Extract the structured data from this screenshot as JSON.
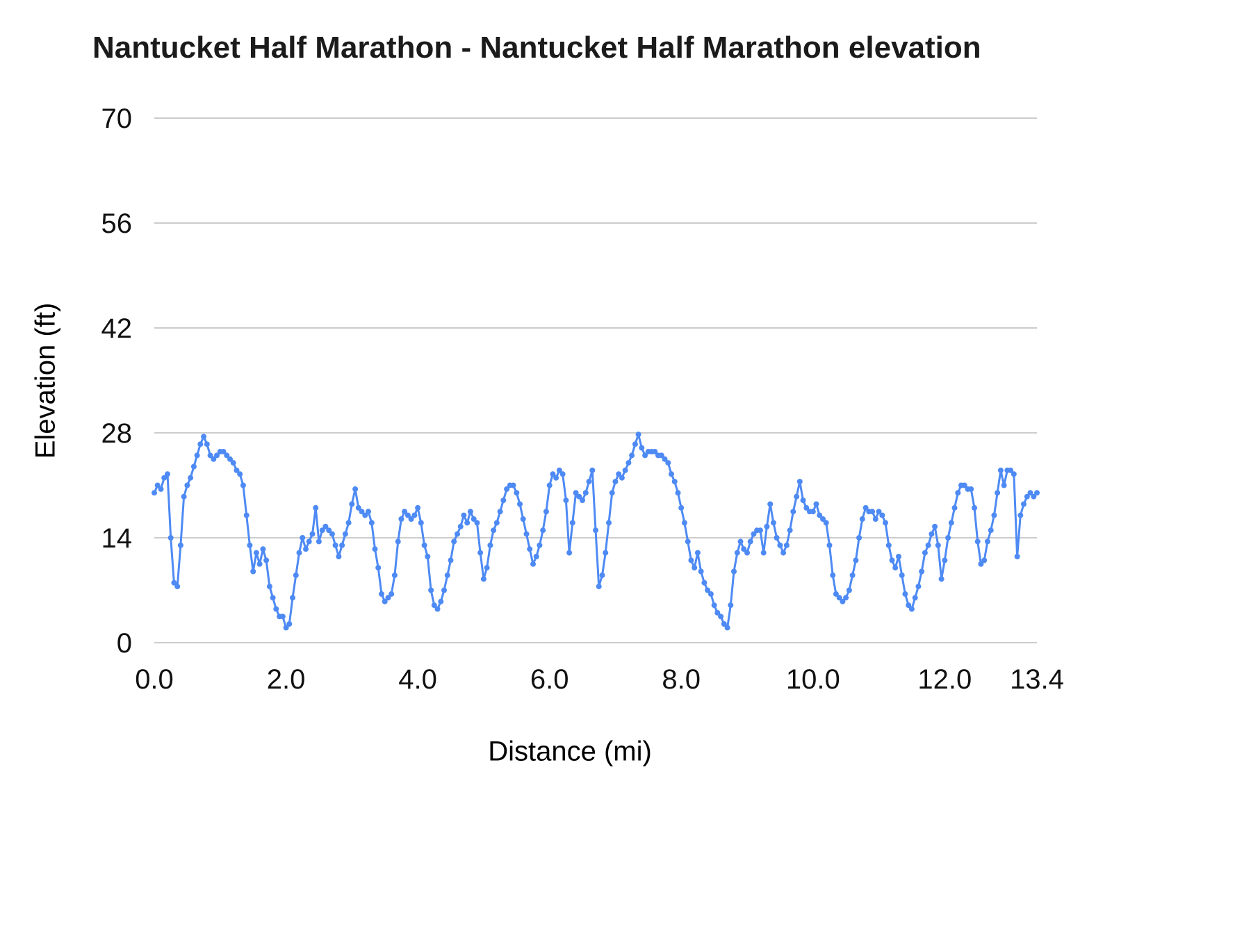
{
  "chart_data": {
    "type": "line",
    "title": "Nantucket Half Marathon - Nantucket Half Marathon elevation",
    "xlabel": "Distance (mi)",
    "ylabel": "Elevation (ft)",
    "xlim": [
      0,
      13.4
    ],
    "ylim": [
      0,
      70
    ],
    "y_ticks": [
      0,
      14,
      28,
      42,
      56,
      70
    ],
    "x_ticks": [
      0.0,
      2.0,
      4.0,
      6.0,
      8.0,
      10.0,
      12.0,
      13.4
    ],
    "x_tick_labels": [
      "0.0",
      "2.0",
      "4.0",
      "6.0",
      "8.0",
      "10.0",
      "12.0",
      "13.4"
    ],
    "grid": "horizontal",
    "legend": "none",
    "line_color": "#4e8af4",
    "grid_color": "#cccccc",
    "tick_color": "#111111",
    "marker": true,
    "x_start": 0,
    "x_step": 0.05,
    "series": [
      {
        "name": "elevation",
        "values": [
          20,
          21,
          20.5,
          22,
          22.5,
          14,
          8,
          7.5,
          13,
          19.5,
          21,
          22,
          23.5,
          25,
          26.5,
          27.5,
          26.5,
          25,
          24.5,
          25,
          25.5,
          25.5,
          25,
          24.5,
          24,
          23,
          22.5,
          21,
          17,
          13,
          9.5,
          12,
          10.5,
          12.5,
          11,
          7.5,
          6,
          4.5,
          3.5,
          3.5,
          2,
          2.5,
          6,
          9,
          12,
          14,
          12.5,
          13.5,
          14.5,
          18,
          13.5,
          15,
          15.5,
          15,
          14.5,
          13,
          11.5,
          13,
          14.5,
          16,
          18.5,
          20.5,
          18,
          17.5,
          17,
          17.5,
          16,
          12.5,
          10,
          6.5,
          5.5,
          6,
          6.5,
          9,
          13.5,
          16.5,
          17.5,
          17,
          16.5,
          17,
          18,
          16,
          13,
          11.5,
          7,
          5,
          4.5,
          5.5,
          7,
          9,
          11,
          13.5,
          14.5,
          15.5,
          17,
          16,
          17.5,
          16.5,
          16,
          12,
          8.5,
          10,
          13,
          15,
          16,
          17.5,
          19,
          20.5,
          21,
          21,
          20,
          18.5,
          16.5,
          14.5,
          12.5,
          10.5,
          11.5,
          13,
          15,
          17.5,
          21,
          22.5,
          22,
          23,
          22.5,
          19,
          12,
          16,
          20,
          19.5,
          19,
          20,
          21.5,
          23,
          15,
          7.5,
          9,
          12,
          16,
          20,
          21.5,
          22.5,
          22,
          23,
          24,
          25,
          26.5,
          27.8,
          26,
          25,
          25.5,
          25.5,
          25.5,
          25,
          25,
          24.5,
          24,
          22.5,
          21.5,
          20,
          18,
          16,
          13.5,
          11,
          10,
          12,
          9.5,
          8,
          7,
          6.5,
          5,
          4,
          3.5,
          2.5,
          2,
          5,
          9.5,
          12,
          13.5,
          12.5,
          12,
          13.5,
          14.5,
          15,
          15,
          12,
          15.5,
          18.5,
          16,
          14,
          13,
          12,
          13,
          15,
          17.5,
          19.5,
          21.5,
          19,
          18,
          17.5,
          17.5,
          18.5,
          17,
          16.5,
          16,
          13,
          9,
          6.5,
          6,
          5.5,
          6,
          7,
          9,
          11,
          14,
          16.5,
          18,
          17.5,
          17.5,
          16.5,
          17.5,
          17,
          16,
          13,
          11,
          10,
          11.5,
          9,
          6.5,
          5,
          4.5,
          6,
          7.5,
          9.5,
          12,
          13,
          14.5,
          15.5,
          13,
          8.5,
          11,
          14,
          16,
          18,
          20,
          21,
          21,
          20.5,
          20.5,
          18,
          13.5,
          10.5,
          11,
          13.5,
          15,
          17,
          20,
          23,
          21,
          23,
          23,
          22.5,
          11.5,
          17,
          18.5,
          19.5,
          20,
          19.5,
          20
        ]
      }
    ]
  }
}
